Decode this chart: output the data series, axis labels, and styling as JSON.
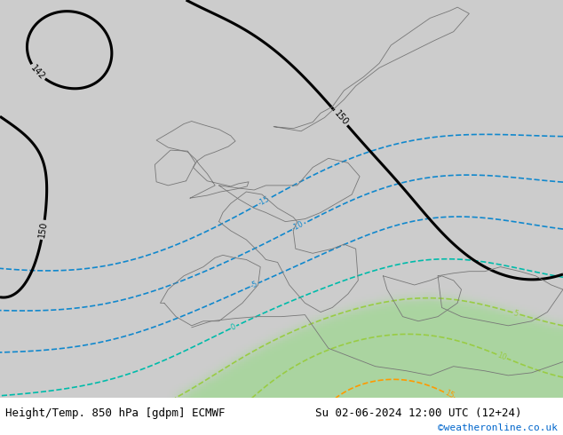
{
  "title_left": "Height/Temp. 850 hPa [gdpm] ECMWF",
  "title_right": "Su 02-06-2024 12:00 UTC (12+24)",
  "credit": "©weatheronline.co.uk",
  "credit_color": "#0066cc",
  "background_warm_color": "#aad4a0",
  "background_cold_color": "#cccccc",
  "fig_bg_color": "#ffffff",
  "bottom_bar_color": "#e8e8e8",
  "title_fontsize": 9,
  "credit_fontsize": 8,
  "figsize": [
    6.34,
    4.9
  ],
  "dpi": 100
}
